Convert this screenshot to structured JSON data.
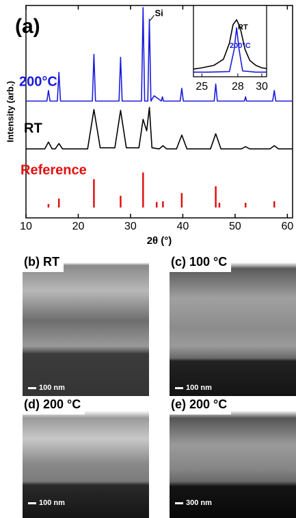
{
  "chart_data": [
    {
      "type": "line",
      "panel_label": "(a)",
      "x_label": "2θ (°)",
      "y_label": "Intensity (arb.)",
      "xlim": [
        10,
        61
      ],
      "xticks": [
        10,
        20,
        30,
        40,
        50,
        60
      ],
      "ylim": [
        0,
        100
      ],
      "annotation": {
        "text": "Si",
        "x": 33.6,
        "y": 93.5
      },
      "series": [
        {
          "name": "200°C",
          "color": "#1a1adc",
          "style": "line",
          "x": [
            10,
            14.0,
            14.3,
            14.6,
            16.0,
            16.3,
            16.6,
            22.7,
            23,
            23.3,
            27.8,
            28.1,
            28.4,
            32.1,
            32.4,
            32.7,
            33.3,
            33.6,
            33.9,
            34.5,
            35.9,
            36.1,
            36.3,
            39.5,
            39.8,
            40.1,
            46,
            46.3,
            46.6,
            51.8,
            52,
            52.2,
            57.2,
            57.5,
            57.8,
            61
          ],
          "values": [
            55,
            55,
            60,
            55,
            55,
            68.5,
            55,
            55,
            77,
            55,
            55,
            75.6,
            55,
            55,
            99,
            55,
            55,
            93.5,
            55,
            57.5,
            55,
            57,
            55,
            55,
            61,
            55,
            55,
            63,
            55,
            55,
            57,
            55,
            55,
            60,
            55,
            55
          ]
        },
        {
          "name": "RT",
          "color": "#000000",
          "style": "line",
          "x": [
            10,
            13.6,
            14.3,
            15,
            15.6,
            16.3,
            17,
            21.8,
            23,
            24.2,
            27,
            28.1,
            29.2,
            31.6,
            32.4,
            33.1,
            33.6,
            34.1,
            35.5,
            36.2,
            36.9,
            38.8,
            39.8,
            40.8,
            45.3,
            46.3,
            47.3,
            51.2,
            52,
            52.8,
            56.7,
            57.5,
            58.3,
            61
          ],
          "values": [
            32.5,
            32.5,
            35.7,
            32.5,
            32.5,
            35,
            32.5,
            32.5,
            51,
            33,
            33,
            50.6,
            33,
            33,
            46.4,
            41,
            52,
            33,
            32.5,
            34,
            32.5,
            32.5,
            39,
            32.5,
            32.5,
            39.6,
            32.5,
            32.5,
            33.5,
            32.5,
            32.5,
            34,
            32.5,
            32.5
          ]
        },
        {
          "name": "Reference",
          "color": "#e01010",
          "style": "stick",
          "baseline": 4.9,
          "x": [
            14.3,
            16.3,
            23,
            28.1,
            32.4,
            35,
            36.2,
            39.8,
            46.3,
            47,
            52,
            57.5
          ],
          "values": [
            6.5,
            9.1,
            18.2,
            10.4,
            21.4,
            7.5,
            7.8,
            11.7,
            14.9,
            7.1,
            7.1,
            7.8
          ]
        }
      ]
    },
    {
      "type": "line",
      "xlim": [
        24.3,
        30.4
      ],
      "xticks": [
        25,
        28,
        30
      ],
      "ylim": [
        0,
        100
      ],
      "series": [
        {
          "name": "RT",
          "color": "#000000",
          "x": [
            24.3,
            25,
            26,
            26.8,
            27.3,
            27.6,
            27.9,
            28.2,
            28.6,
            29,
            29.5,
            30,
            30.4
          ],
          "values": [
            8,
            10,
            14,
            24,
            50,
            80,
            88,
            75,
            40,
            22,
            14,
            10,
            9
          ]
        },
        {
          "name": "200°C",
          "color": "#1a1adc",
          "x": [
            24.3,
            25.5,
            27.3,
            27.7,
            27.9,
            28.1,
            28.4,
            29.5,
            30.4
          ],
          "values": [
            3,
            3,
            4,
            40,
            75,
            40,
            5,
            3,
            3
          ]
        }
      ]
    }
  ],
  "images": [
    {
      "label": "(b)  RT",
      "scale": "100 nm"
    },
    {
      "label": "(c)  100 °C",
      "scale": "100 nm"
    },
    {
      "label": "(d)   200 °C",
      "scale": "100 nm"
    },
    {
      "label": "(e)  200 °C",
      "scale": "300 nm"
    }
  ]
}
